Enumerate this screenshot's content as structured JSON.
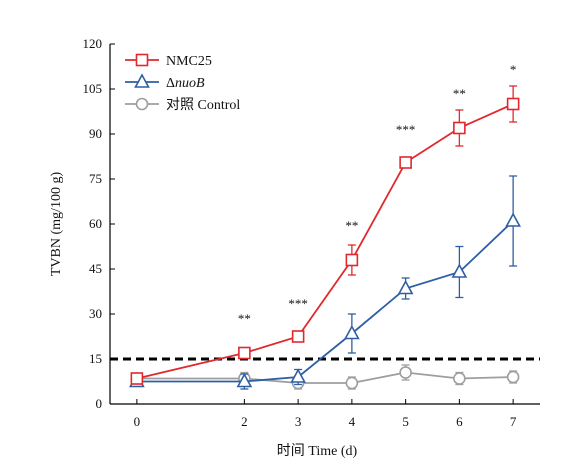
{
  "chart_data": {
    "type": "line",
    "xlabel": "时间 Time (d)",
    "ylabel": "TVBN (mg/100 g)",
    "x": [
      0,
      2,
      3,
      4,
      5,
      6,
      7
    ],
    "xlim": [
      -0.5,
      7.5
    ],
    "ylim": [
      0,
      120
    ],
    "yticks": [
      0,
      15,
      30,
      45,
      60,
      75,
      90,
      105,
      120
    ],
    "ytick_labels": [
      "0",
      "15",
      "30",
      "45",
      "60",
      "75",
      "90",
      "105",
      "120"
    ],
    "xtick_labels": [
      "0",
      "2",
      "3",
      "4",
      "5",
      "6",
      "7"
    ],
    "grid": false,
    "legend_position": "top-left",
    "threshold_line": {
      "y": 15,
      "style": "dashed",
      "color": "#000000"
    },
    "series": [
      {
        "name": "NMC25",
        "color": "#e0292d",
        "marker": "square",
        "values": [
          8.5,
          17,
          22.5,
          48,
          80.5,
          92,
          100
        ],
        "errors": [
          1.5,
          1.5,
          1.2,
          5,
          1.5,
          6,
          6
        ]
      },
      {
        "name_prefix": "Δ",
        "name_italic": "nuoB",
        "color": "#2e5fa3",
        "marker": "triangle",
        "values": [
          7.5,
          7.5,
          9,
          23.5,
          38.5,
          44,
          61
        ],
        "errors": [
          1.5,
          2.5,
          2.5,
          6.5,
          3.5,
          8.5,
          15
        ]
      },
      {
        "name": "对照 Control",
        "color": "#9e9e9e",
        "marker": "circle",
        "values": [
          8.5,
          8.5,
          7,
          7,
          10.5,
          8.5,
          9
        ],
        "errors": [
          1.5,
          2,
          2,
          2,
          2.5,
          2,
          2
        ]
      }
    ],
    "significance": [
      {
        "x": 2,
        "label": "**",
        "y": 27
      },
      {
        "x": 3,
        "label": "***",
        "y": 32
      },
      {
        "x": 4,
        "label": "**",
        "y": 58
      },
      {
        "x": 5,
        "label": "***",
        "y": 90
      },
      {
        "x": 6,
        "label": "**",
        "y": 102
      },
      {
        "x": 7,
        "label": "*",
        "y": 110
      }
    ]
  }
}
